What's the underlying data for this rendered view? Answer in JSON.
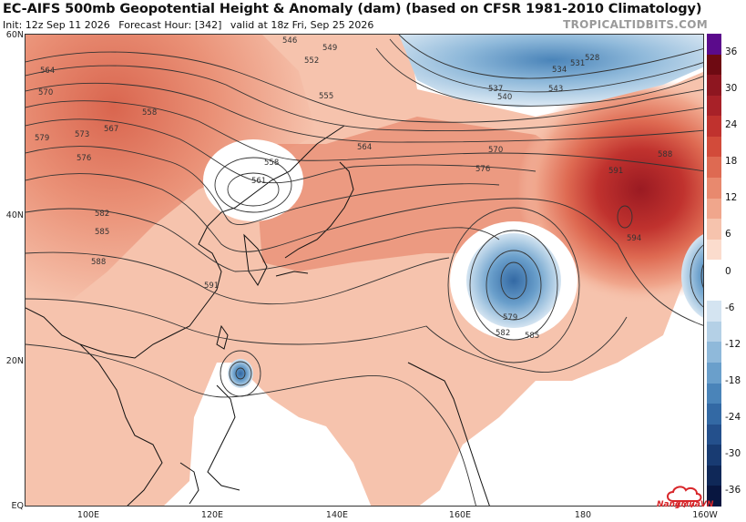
{
  "header": {
    "title": "EC-AIFS 500mb Geopotential Height & Anomaly (dam) (based on CFSR 1981-2010 Climatology)",
    "init": "Init: 12z Sep 11 2026",
    "forecast_hour": "Forecast Hour: [342]",
    "valid": "valid at 18z Fri, Sep 25 2026",
    "brand": "TROPICALTIDBITS.COM"
  },
  "axes": {
    "lat_labels": [
      "60N",
      "40N",
      "20N",
      "EQ"
    ],
    "lon_labels": [
      "100E",
      "120E",
      "140E",
      "160E",
      "180",
      "160W"
    ]
  },
  "colorbar": {
    "ticks": [
      "36",
      "30",
      "24",
      "18",
      "12",
      "6",
      "0",
      "-6",
      "-12",
      "-18",
      "-24",
      "-30",
      "-36"
    ],
    "colors": [
      "#5b0b8c",
      "#6e0a12",
      "#8e1620",
      "#a82128",
      "#c0322e",
      "#d24b3a",
      "#de6a52",
      "#e8896e",
      "#f0a68c",
      "#f6c3ad",
      "#fbdccd",
      "#ffffff",
      "#ffffff",
      "#d4e4f1",
      "#b4d0e6",
      "#8fb9da",
      "#6a9fcb",
      "#4a84b9",
      "#3369a4",
      "#24508c",
      "#183b72",
      "#0f2858",
      "#081640"
    ]
  },
  "contour_labels": {
    "north": [
      "546",
      "549",
      "552",
      "555",
      "558",
      "564",
      "570",
      "576",
      "534",
      "531",
      "528",
      "537",
      "540",
      "543"
    ],
    "west": [
      "564",
      "570",
      "579",
      "573",
      "567",
      "576",
      "561",
      "558",
      "582",
      "585",
      "588",
      "591"
    ],
    "east": [
      "594",
      "591",
      "588",
      "585",
      "582",
      "579"
    ]
  },
  "watermark": "NangMuaVN",
  "chart_data": {
    "type": "map",
    "title": "EC-AIFS 500mb Geopotential Height & Anomaly (dam) (based on CFSR 1981-2010 Climatology)",
    "fields": [
      "500mb Geopotential Height (dam)",
      "Anomaly (dam)"
    ],
    "contour_levels": [
      528,
      531,
      534,
      537,
      540,
      543,
      546,
      549,
      552,
      555,
      558,
      561,
      564,
      567,
      570,
      573,
      576,
      579,
      582,
      585,
      588,
      591,
      594
    ],
    "anomaly_range": [
      -36,
      36
    ],
    "ylim": [
      0,
      67
    ],
    "xlim": [
      90,
      200
    ],
    "features": [
      {
        "name": "upper low over Northeast China",
        "center_value": 558
      },
      {
        "name": "subtropical high near Dateline",
        "max_value": 594
      },
      {
        "name": "cut-off low in West Pacific",
        "min_value": 579
      },
      {
        "name": "tropical cyclone east of Philippines",
        "center_value": 585
      }
    ]
  }
}
